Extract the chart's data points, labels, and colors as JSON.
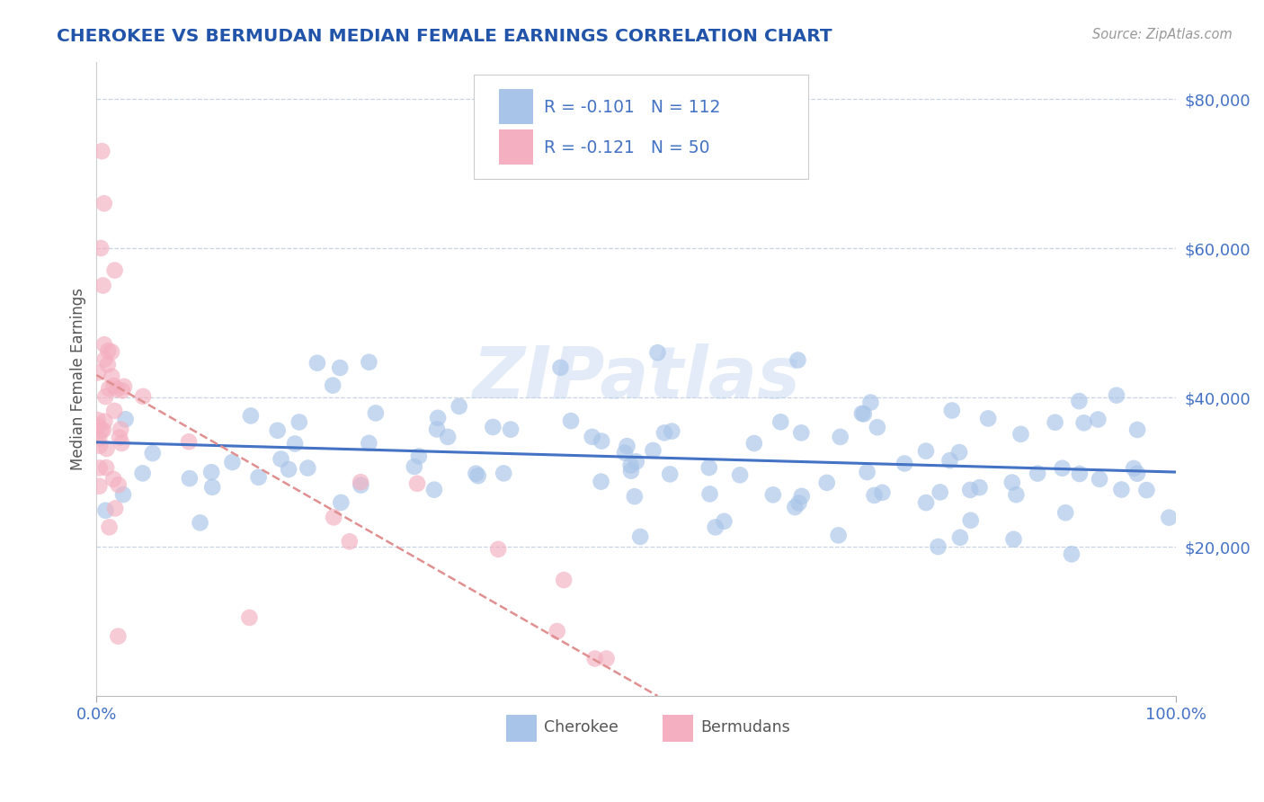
{
  "title": "CHEROKEE VS BERMUDAN MEDIAN FEMALE EARNINGS CORRELATION CHART",
  "source_text": "Source: ZipAtlas.com",
  "ylabel": "Median Female Earnings",
  "xlim": [
    0,
    1.0
  ],
  "ylim": [
    0,
    85000
  ],
  "ytick_values": [
    20000,
    40000,
    60000,
    80000
  ],
  "watermark": "ZIPatlas",
  "cherokee_scatter_color": "#a8c4e8",
  "bermuda_scatter_color": "#f4afc0",
  "cherokee_line_color": "#4472c4",
  "bermuda_line_color": "#e09090",
  "tick_color": "#4472c4",
  "grid_color": "#c8d4e4",
  "title_color": "#2255aa",
  "source_color": "#999999",
  "axis_label_color": "#555555",
  "background_color": "#ffffff",
  "cherokee_label": "Cherokee",
  "bermuda_label": "Bermudans",
  "legend_text_color": "#4472c4",
  "n_cherokee": 112,
  "n_bermuda": 50,
  "cherokee_R": "-0.101",
  "bermuda_R": "-0.121",
  "cherokee_N": "112",
  "bermuda_N": "50",
  "blue_trend": [
    0.0,
    1.0,
    34000,
    30000
  ],
  "pink_trend_x": [
    0.0,
    0.52
  ],
  "pink_trend_y": [
    43000,
    0
  ]
}
